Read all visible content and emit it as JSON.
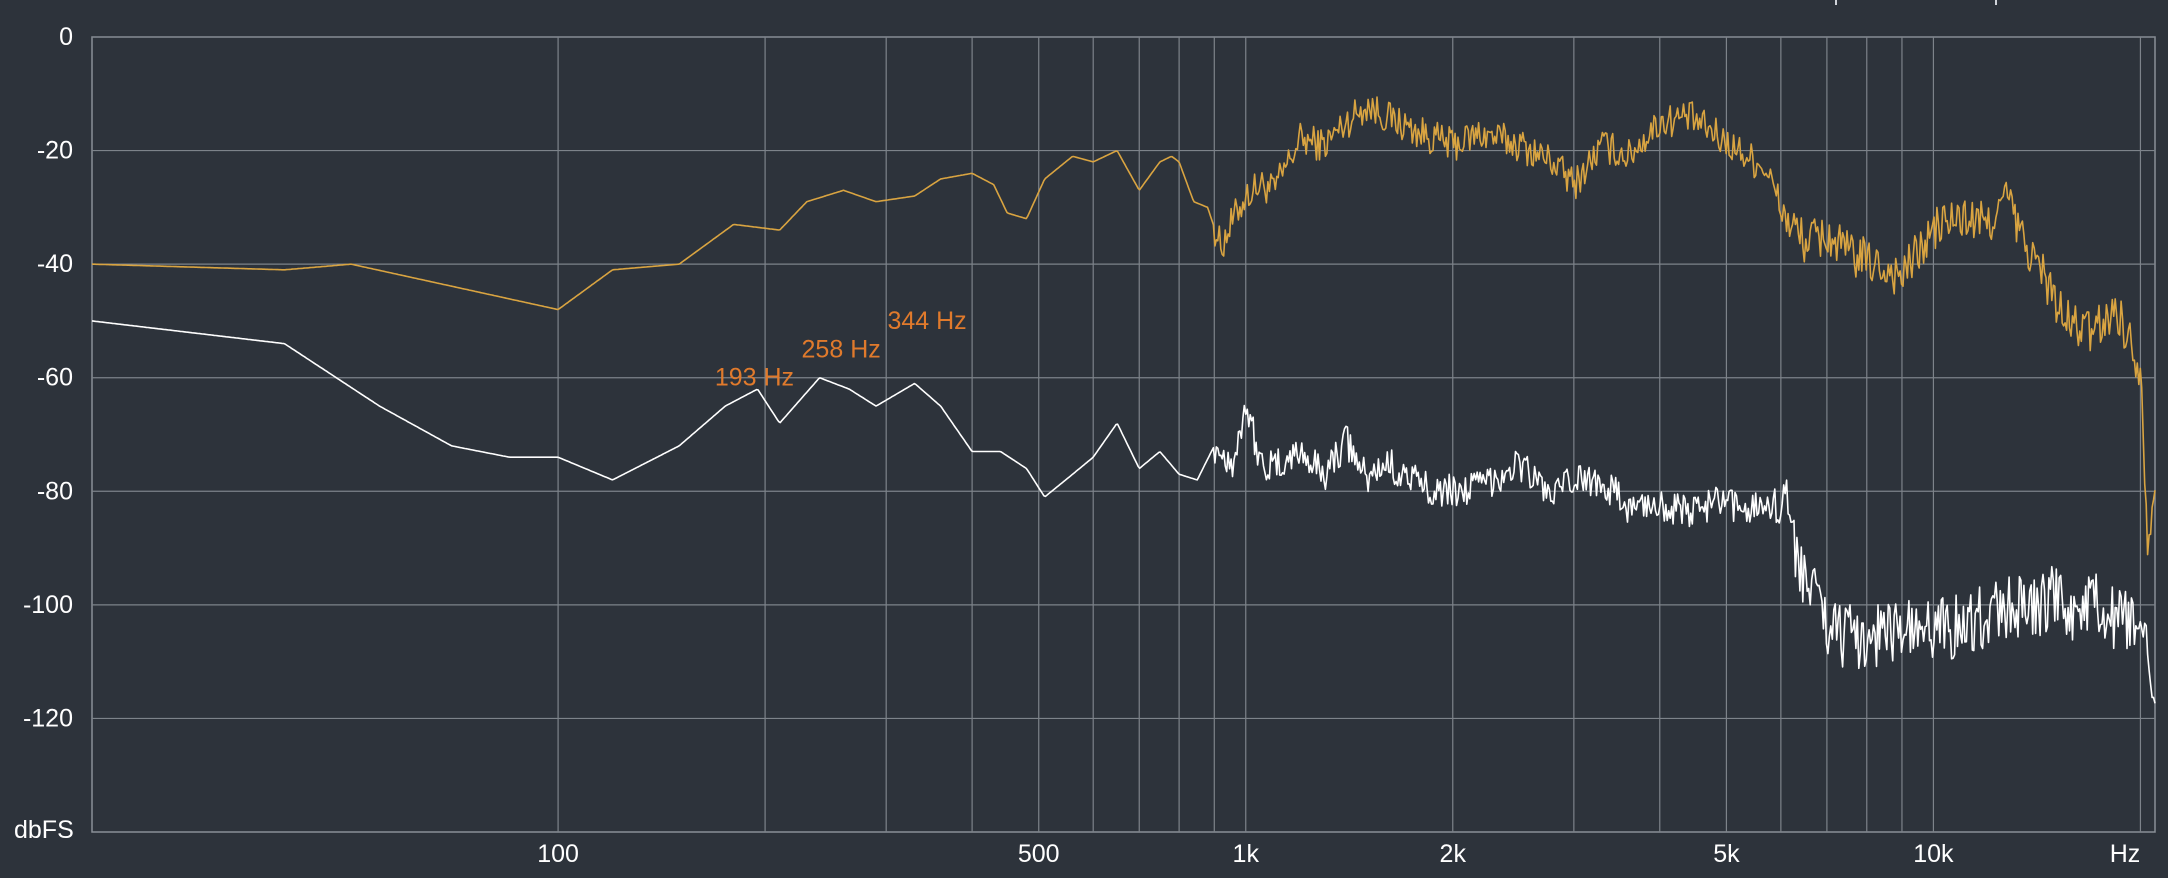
{
  "chart_data": {
    "type": "line",
    "title": "",
    "xlabel": "Hz",
    "ylabel": "dbFS",
    "x_scale": "log",
    "xlim": [
      21,
      21000
    ],
    "ylim": [
      -140,
      0
    ],
    "grid": true,
    "x_ticks": [
      {
        "value": 100,
        "label": "100"
      },
      {
        "value": 500,
        "label": "500"
      },
      {
        "value": 1000,
        "label": "1k"
      },
      {
        "value": 2000,
        "label": "2k"
      },
      {
        "value": 5000,
        "label": "5k"
      },
      {
        "value": 10000,
        "label": "10k"
      }
    ],
    "x_minor_grid": [
      100,
      200,
      300,
      400,
      500,
      600,
      700,
      800,
      900,
      1000,
      2000,
      3000,
      4000,
      5000,
      6000,
      7000,
      8000,
      9000,
      10000,
      20000
    ],
    "y_ticks": [
      {
        "value": 0,
        "label": "0"
      },
      {
        "value": -20,
        "label": "-20"
      },
      {
        "value": -40,
        "label": "-40"
      },
      {
        "value": -60,
        "label": "-60"
      },
      {
        "value": -80,
        "label": "-80"
      },
      {
        "value": -100,
        "label": "-100"
      },
      {
        "value": -120,
        "label": "-120"
      }
    ],
    "series": [
      {
        "color": "#d9a441",
        "x": [
          21,
          40,
          50,
          100,
          120,
          150,
          180,
          210,
          230,
          260,
          290,
          330,
          360,
          400,
          430,
          450,
          480,
          510,
          560,
          600,
          650,
          700,
          750,
          780,
          800,
          840,
          880,
          920,
          960,
          1000,
          1050,
          1100,
          1200,
          1300,
          1400,
          1500,
          1600,
          1800,
          2000,
          2200,
          2500,
          2800,
          3000,
          3300,
          3600,
          4000,
          4400,
          4800,
          5200,
          5700,
          6100,
          6500,
          7000,
          7500,
          8200,
          9000,
          9500,
          10200,
          11000,
          12000,
          12800,
          13500,
          14500,
          15500,
          17000,
          18500,
          19500,
          20000,
          20500,
          21000
        ],
        "values": [
          -40,
          -41,
          -40,
          -48,
          -41,
          -40,
          -33,
          -34,
          -29,
          -27,
          -29,
          -28,
          -25,
          -24,
          -26,
          -31,
          -32,
          -25,
          -21,
          -22,
          -20,
          -27,
          -22,
          -21,
          -22,
          -29,
          -30,
          -37,
          -32,
          -28,
          -26,
          -27,
          -18,
          -19,
          -15,
          -12,
          -14,
          -17,
          -19,
          -17,
          -19,
          -22,
          -26,
          -19,
          -21,
          -15,
          -14,
          -17,
          -20,
          -23,
          -32,
          -36,
          -35,
          -38,
          -40,
          -42,
          -38,
          -33,
          -32,
          -33,
          -28,
          -36,
          -42,
          -50,
          -52,
          -48,
          -55,
          -58,
          -88,
          -80
        ]
      },
      {
        "color": "#ffffff",
        "x": [
          21,
          40,
          55,
          70,
          85,
          100,
          120,
          150,
          175,
          195,
          210,
          240,
          265,
          290,
          330,
          360,
          400,
          440,
          480,
          510,
          560,
          600,
          650,
          700,
          750,
          800,
          850,
          900,
          960,
          1000,
          1050,
          1100,
          1200,
          1300,
          1400,
          1500,
          1600,
          1800,
          2000,
          2200,
          2500,
          2800,
          3000,
          3300,
          3600,
          4000,
          4400,
          4800,
          5200,
          5700,
          6100,
          6500,
          7000,
          7500,
          8200,
          9000,
          9500,
          10200,
          11000,
          12000,
          13000,
          14000,
          15000,
          16000,
          17000,
          18500,
          19500,
          20500,
          21000
        ],
        "values": [
          -50,
          -54,
          -65,
          -72,
          -74,
          -74,
          -78,
          -72,
          -65,
          -62,
          -68,
          -60,
          -62,
          -65,
          -61,
          -65,
          -73,
          -73,
          -76,
          -81,
          -77,
          -74,
          -68,
          -76,
          -73,
          -77,
          -78,
          -72,
          -75,
          -64,
          -75,
          -76,
          -73,
          -77,
          -71,
          -78,
          -75,
          -79,
          -80,
          -79,
          -75,
          -81,
          -78,
          -78,
          -83,
          -82,
          -84,
          -82,
          -83,
          -82,
          -83,
          -95,
          -103,
          -106,
          -105,
          -104,
          -106,
          -103,
          -104,
          -102,
          -100,
          -101,
          -99,
          -101,
          -100,
          -103,
          -104,
          -110,
          -119
        ]
      }
    ],
    "annotations": [
      {
        "label": "193 Hz",
        "x": 193,
        "y": -60
      },
      {
        "label": "258 Hz",
        "x": 258,
        "y": -55
      },
      {
        "label": "344 Hz",
        "x": 344,
        "y": -50
      }
    ]
  }
}
